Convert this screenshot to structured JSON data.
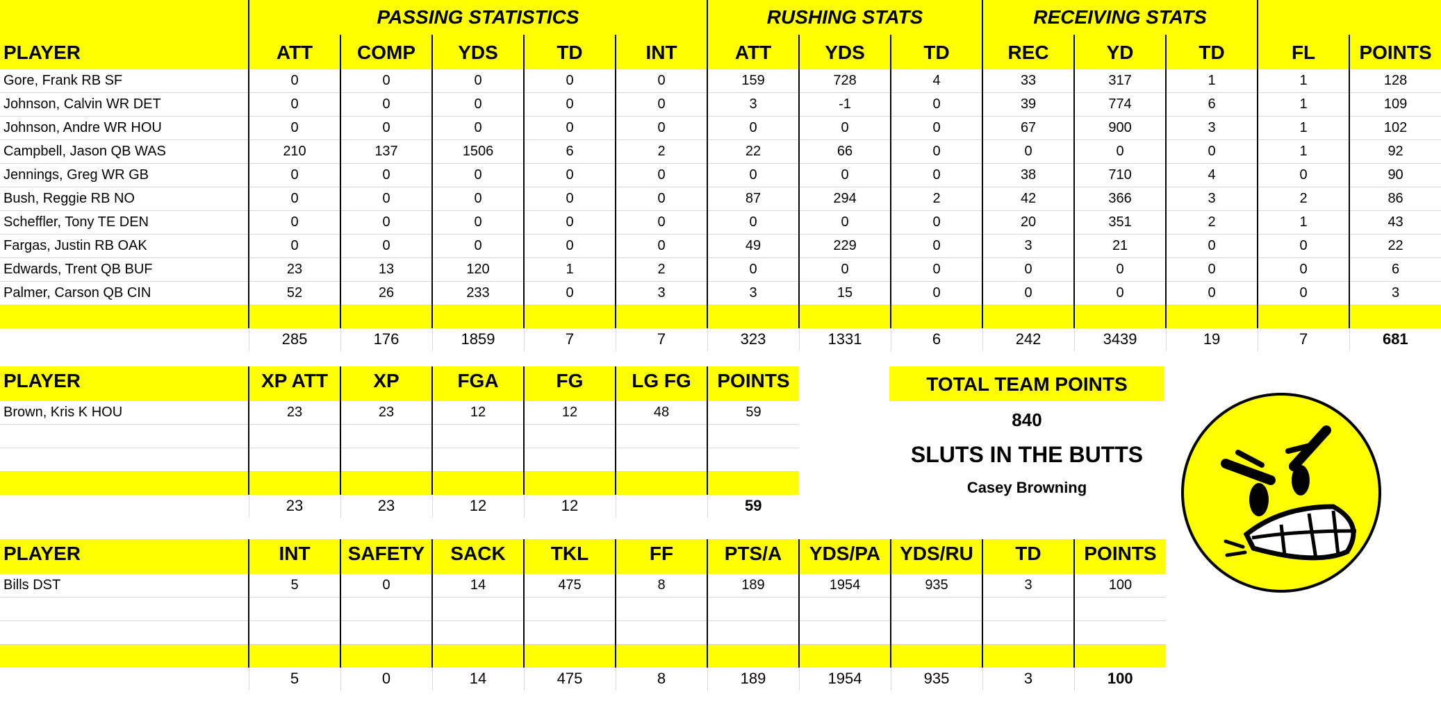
{
  "offense": {
    "groups": {
      "passing": "PASSING STATISTICS",
      "rushing": "RUSHING STATS",
      "receiving": "RECEIVING STATS"
    },
    "headers": [
      "PLAYER",
      "ATT",
      "COMP",
      "YDS",
      "TD",
      "INT",
      "ATT",
      "YDS",
      "TD",
      "REC",
      "YD",
      "TD",
      "FL",
      "POINTS"
    ],
    "rows": [
      [
        "Gore, Frank RB SF",
        "0",
        "0",
        "0",
        "0",
        "0",
        "159",
        "728",
        "4",
        "33",
        "317",
        "1",
        "1",
        "128"
      ],
      [
        "Johnson, Calvin WR DET",
        "0",
        "0",
        "0",
        "0",
        "0",
        "3",
        "-1",
        "0",
        "39",
        "774",
        "6",
        "1",
        "109"
      ],
      [
        "Johnson, Andre WR HOU",
        "0",
        "0",
        "0",
        "0",
        "0",
        "0",
        "0",
        "0",
        "67",
        "900",
        "3",
        "1",
        "102"
      ],
      [
        "Campbell, Jason QB WAS",
        "210",
        "137",
        "1506",
        "6",
        "2",
        "22",
        "66",
        "0",
        "0",
        "0",
        "0",
        "1",
        "92"
      ],
      [
        "Jennings, Greg WR GB",
        "0",
        "0",
        "0",
        "0",
        "0",
        "0",
        "0",
        "0",
        "38",
        "710",
        "4",
        "0",
        "90"
      ],
      [
        "Bush, Reggie RB NO",
        "0",
        "0",
        "0",
        "0",
        "0",
        "87",
        "294",
        "2",
        "42",
        "366",
        "3",
        "2",
        "86"
      ],
      [
        "Scheffler, Tony TE DEN",
        "0",
        "0",
        "0",
        "0",
        "0",
        "0",
        "0",
        "0",
        "20",
        "351",
        "2",
        "1",
        "43"
      ],
      [
        "Fargas, Justin RB OAK",
        "0",
        "0",
        "0",
        "0",
        "0",
        "49",
        "229",
        "0",
        "3",
        "21",
        "0",
        "0",
        "22"
      ],
      [
        "Edwards, Trent QB BUF",
        "23",
        "13",
        "120",
        "1",
        "2",
        "0",
        "0",
        "0",
        "0",
        "0",
        "0",
        "0",
        "6"
      ],
      [
        "Palmer, Carson QB CIN",
        "52",
        "26",
        "233",
        "0",
        "3",
        "3",
        "15",
        "0",
        "0",
        "0",
        "0",
        "0",
        "3"
      ]
    ],
    "totals": [
      "",
      "285",
      "176",
      "1859",
      "7",
      "7",
      "323",
      "1331",
      "6",
      "242",
      "3439",
      "19",
      "7",
      "681"
    ]
  },
  "kicker": {
    "headers": [
      "PLAYER",
      "XP ATT",
      "XP",
      "FGA",
      "FG",
      "LG FG",
      "POINTS"
    ],
    "rows": [
      [
        "Brown, Kris K HOU",
        "23",
        "23",
        "12",
        "12",
        "48",
        "59"
      ],
      [
        "",
        "",
        "",
        "",
        "",
        "",
        ""
      ],
      [
        "",
        "",
        "",
        "",
        "",
        "",
        ""
      ]
    ],
    "totals": [
      "",
      "23",
      "23",
      "12",
      "12",
      "",
      "59"
    ]
  },
  "defense": {
    "headers": [
      "PLAYER",
      "INT",
      "SAFETY",
      "SACK",
      "TKL",
      "FF",
      "PTS/A",
      "YDS/PA",
      "YDS/RU",
      "TD",
      "POINTS"
    ],
    "rows": [
      [
        "Bills DST",
        "5",
        "0",
        "14",
        "475",
        "8",
        "189",
        "1954",
        "935",
        "3",
        "100"
      ],
      [
        "",
        "",
        "",
        "",
        "",
        "",
        "",
        "",
        "",
        "",
        ""
      ],
      [
        "",
        "",
        "",
        "",
        "",
        "",
        "",
        "",
        "",
        "",
        ""
      ]
    ],
    "totals": [
      "",
      "5",
      "0",
      "14",
      "475",
      "8",
      "189",
      "1954",
      "935",
      "3",
      "100"
    ]
  },
  "summary": {
    "label": "TOTAL TEAM POINTS",
    "total": "840",
    "team_name": "SLUTS IN THE BUTTS",
    "owner": "Casey Browning"
  },
  "icons": {
    "face": "angry-face-icon"
  },
  "colors": {
    "highlight": "#ffff00",
    "face_fill": "#ffff00"
  }
}
